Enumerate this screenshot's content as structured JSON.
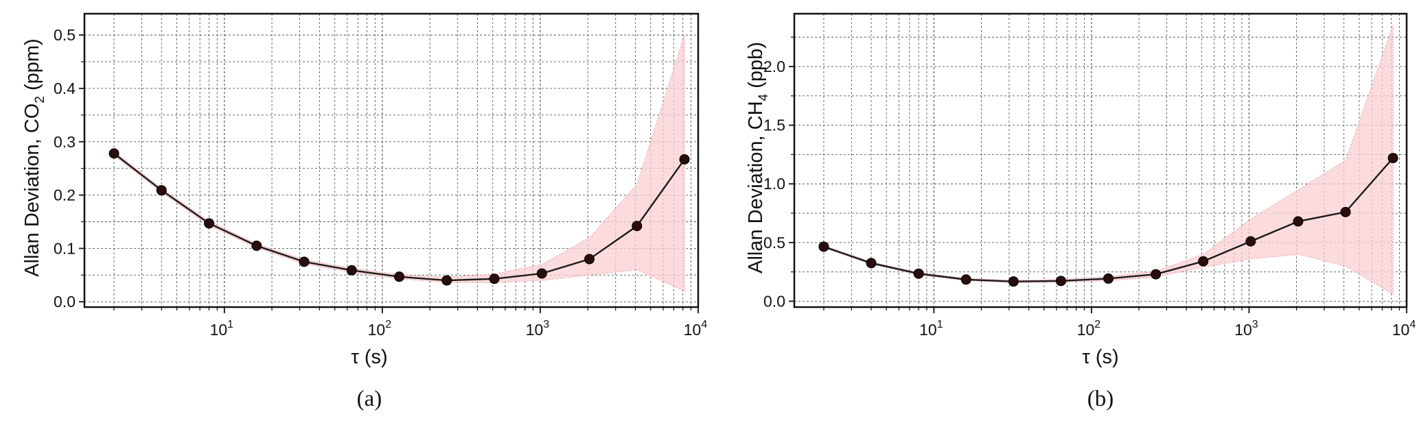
{
  "figure": {
    "captions": [
      "(a)",
      "(b)"
    ]
  },
  "chart_data": [
    {
      "type": "line",
      "title": "",
      "xlabel": "τ  (s)",
      "ylabel": "Allan Deviation, CO",
      "ylabel_subscript": "2",
      "ylabel_unit": " (ppm)",
      "xscale": "log",
      "xlim": [
        1.3,
        10000
      ],
      "ylim": [
        -0.01,
        0.54
      ],
      "xtick_exponents": [
        "1",
        "2",
        "3",
        "4"
      ],
      "xticks": [
        10,
        100,
        1000,
        10000
      ],
      "yticks": [
        0.0,
        0.1,
        0.2,
        0.3,
        0.4,
        0.5
      ],
      "ytick_labels": [
        "0.0",
        "0.1",
        "0.2",
        "0.3",
        "0.4",
        "0.5"
      ],
      "grid": true,
      "colors": {
        "line": "#1a1a1a",
        "marker": "#2a0d0d",
        "band": "#f9cfd3",
        "band_edge": "#e58a95"
      },
      "x": [
        2,
        4,
        8,
        16,
        32,
        64,
        128,
        256,
        512,
        1024,
        2048,
        4096,
        8192
      ],
      "series": [
        {
          "values": [
            0.278,
            0.209,
            0.147,
            0.105,
            0.075,
            0.059,
            0.047,
            0.04,
            0.043,
            0.053,
            0.08,
            0.142,
            0.267
          ],
          "band_low": [
            0.274,
            0.205,
            0.143,
            0.101,
            0.071,
            0.055,
            0.043,
            0.036,
            0.036,
            0.04,
            0.05,
            0.06,
            0.02
          ],
          "band_high": [
            0.282,
            0.213,
            0.151,
            0.109,
            0.079,
            0.063,
            0.051,
            0.046,
            0.052,
            0.07,
            0.12,
            0.22,
            0.5
          ]
        }
      ]
    },
    {
      "type": "line",
      "title": "",
      "xlabel": "τ  (s)",
      "ylabel": "Allan Deviation, CH",
      "ylabel_subscript": "4",
      "ylabel_unit": " (ppb)",
      "xscale": "log",
      "xlim": [
        1.3,
        10000
      ],
      "ylim": [
        -0.05,
        2.45
      ],
      "xtick_exponents": [
        "1",
        "2",
        "3",
        "4"
      ],
      "xticks": [
        10,
        100,
        1000,
        10000
      ],
      "yticks": [
        0.0,
        0.5,
        1.0,
        1.5,
        2.0
      ],
      "ytick_labels": [
        "0.0",
        "0.5",
        "1.0",
        "1.5",
        "2.0"
      ],
      "grid": true,
      "colors": {
        "line": "#1a1a1a",
        "marker": "#2a0d0d",
        "band": "#f9cfd3",
        "band_edge": "#e58a95"
      },
      "x": [
        2,
        4,
        8,
        16,
        32,
        64,
        128,
        256,
        512,
        1024,
        2048,
        4096,
        8192
      ],
      "series": [
        {
          "values": [
            0.465,
            0.325,
            0.235,
            0.185,
            0.168,
            0.173,
            0.193,
            0.23,
            0.34,
            0.51,
            0.68,
            0.76,
            1.22
          ],
          "band_low": [
            0.455,
            0.315,
            0.225,
            0.175,
            0.158,
            0.16,
            0.175,
            0.205,
            0.29,
            0.36,
            0.4,
            0.3,
            0.06
          ],
          "band_high": [
            0.475,
            0.335,
            0.245,
            0.195,
            0.178,
            0.186,
            0.211,
            0.255,
            0.4,
            0.7,
            0.95,
            1.2,
            2.35
          ]
        }
      ]
    }
  ]
}
